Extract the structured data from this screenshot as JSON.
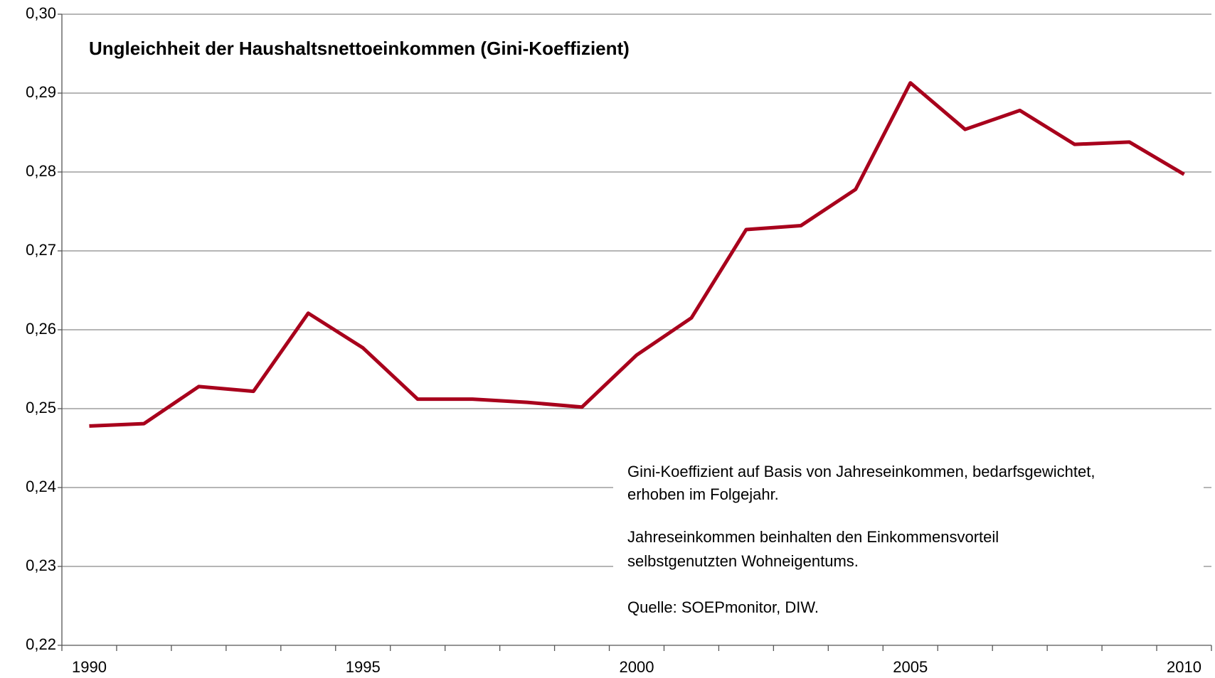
{
  "chart_data": {
    "type": "line",
    "title": "Ungleichheit der Haushaltsnettoeinkommen (Gini-Koeffizient)",
    "categories": [
      "1990",
      null,
      null,
      null,
      null,
      "1995",
      null,
      null,
      null,
      null,
      "2000",
      null,
      null,
      null,
      null,
      "2005",
      null,
      null,
      null,
      null,
      "2010"
    ],
    "series": [
      {
        "name": "Gini-Koeffizient",
        "color": "#a8001c",
        "values": [
          0.2478,
          0.2481,
          0.2528,
          0.2522,
          0.2621,
          0.2577,
          0.2512,
          0.2512,
          0.2508,
          0.2502,
          0.2568,
          0.2615,
          0.2727,
          0.2732,
          0.2778,
          0.2913,
          0.2854,
          0.2878,
          0.2835,
          0.2838,
          0.2797
        ]
      }
    ],
    "ylim": [
      0.22,
      0.3
    ],
    "yticks": [
      {
        "value": 0.22,
        "label": "0,22"
      },
      {
        "value": 0.23,
        "label": "0,23"
      },
      {
        "value": 0.24,
        "label": "0,24"
      },
      {
        "value": 0.25,
        "label": "0,25"
      },
      {
        "value": 0.26,
        "label": "0,26"
      },
      {
        "value": 0.27,
        "label": "0,27"
      },
      {
        "value": 0.28,
        "label": "0,28"
      },
      {
        "value": 0.29,
        "label": "0,29"
      },
      {
        "value": 0.3,
        "label": "0,30"
      }
    ],
    "grid": true,
    "annotation": [
      "Gini-Koeffizient auf Basis von Jahreseinkommen, bedarfsgewichtet,",
      "erhoben im Folgejahr.",
      "Jahreseinkommen beinhalten den Einkommensvorteil",
      "selbstgenutzten Wohneigentums.",
      "Quelle: SOEPmonitor, DIW."
    ]
  }
}
